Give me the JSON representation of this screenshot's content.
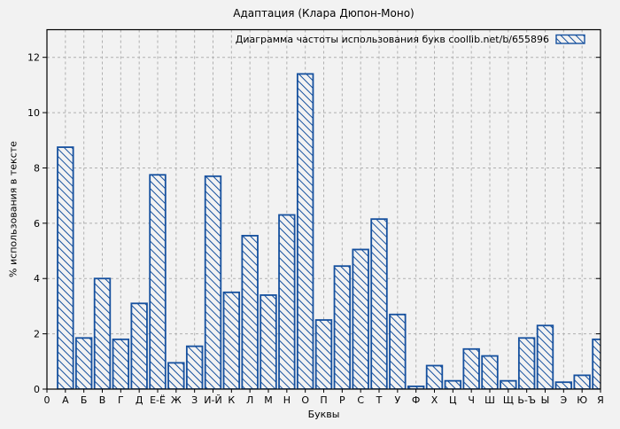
{
  "chart_data": {
    "type": "bar",
    "title": "Адаптация (Клара Дюпон-Моно)",
    "legend": "Диаграмма частоты использования букв coollib.net/b/655896",
    "xlabel": "Буквы",
    "ylabel": "% использования в тексте",
    "origin_label": "0",
    "categories": [
      "А",
      "Б",
      "В",
      "Г",
      "Д",
      "Е-Ё",
      "Ж",
      "З",
      "И-Й",
      "К",
      "Л",
      "М",
      "Н",
      "О",
      "П",
      "Р",
      "С",
      "Т",
      "У",
      "Ф",
      "Х",
      "Ц",
      "Ч",
      "Ш",
      "Щ",
      "Ь-Ъ",
      "Ы",
      "Э",
      "Ю",
      "Я"
    ],
    "values": [
      8.75,
      1.85,
      4.0,
      1.8,
      3.1,
      7.75,
      0.95,
      1.55,
      7.7,
      3.5,
      5.55,
      3.4,
      6.3,
      11.4,
      2.5,
      4.45,
      5.05,
      6.15,
      2.7,
      0.1,
      0.85,
      0.3,
      1.45,
      1.2,
      0.3,
      1.85,
      2.3,
      0.25,
      0.5,
      1.8
    ],
    "yticks": [
      0,
      2,
      4,
      6,
      8,
      10,
      12
    ],
    "ylim": [
      0,
      13
    ],
    "grid": true,
    "legend_position": "top-right",
    "hatch_style": "diagonal-backslash",
    "colors": {
      "background": "#f2f2f2",
      "bar": "#15509e",
      "grid": "#b0b0b0",
      "axis": "#000000",
      "text": "#000000"
    }
  }
}
